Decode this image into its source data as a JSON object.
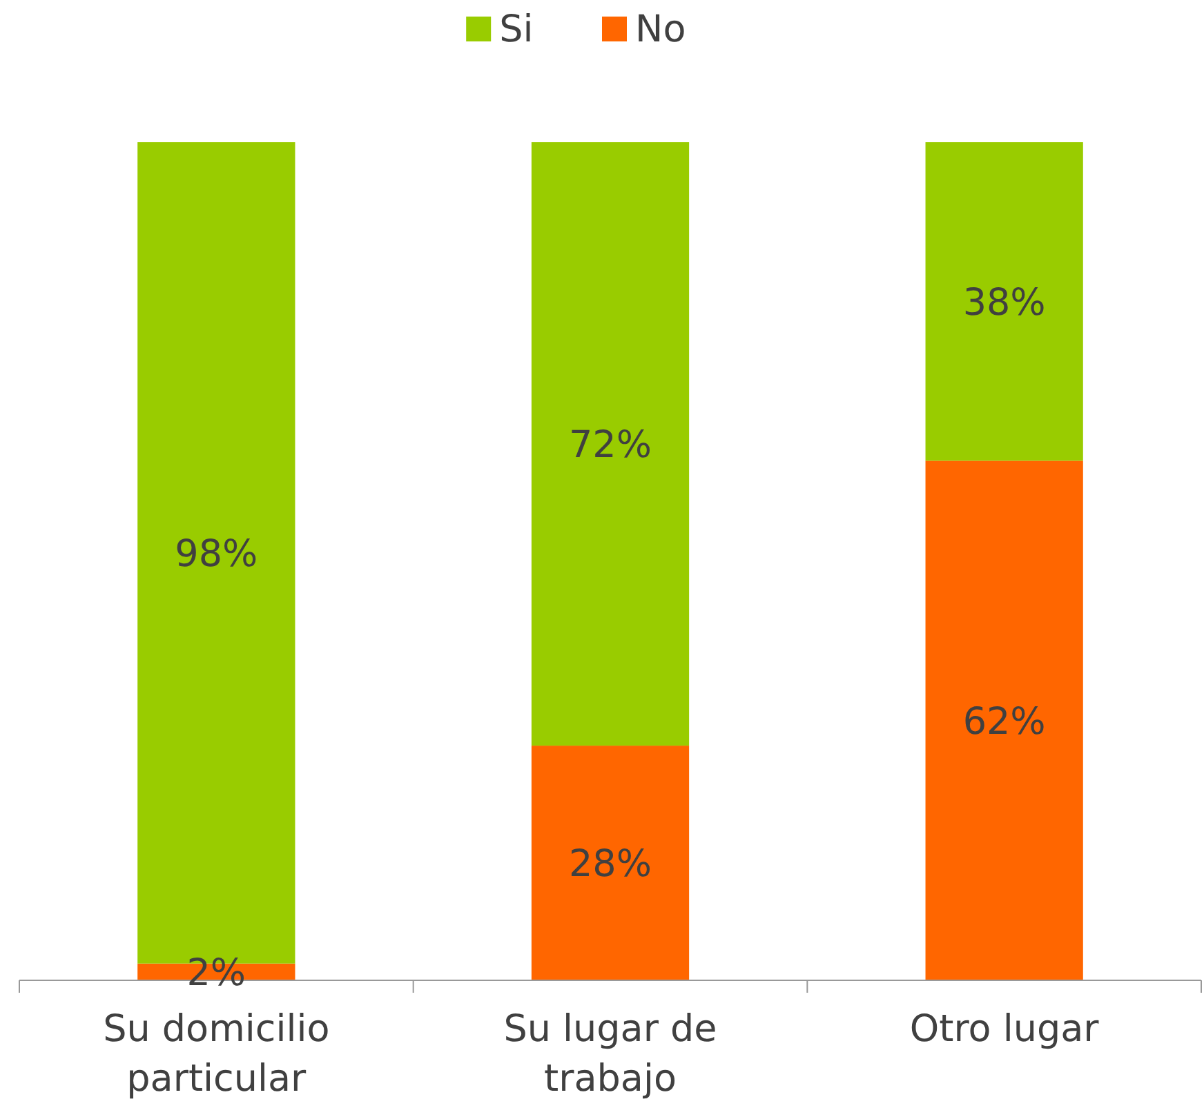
{
  "chart_data": {
    "type": "bar",
    "stacked": true,
    "categories": [
      "Su domicilio particular",
      "Su lugar de trabajo",
      "Otro lugar"
    ],
    "series": [
      {
        "name": "No",
        "color": "#ff6600",
        "values": [
          2,
          28,
          62
        ],
        "value_labels": [
          "2%",
          "28%",
          "62%"
        ]
      },
      {
        "name": "Si",
        "color": "#99cc00",
        "values": [
          98,
          72,
          38
        ],
        "value_labels": [
          "98%",
          "72%",
          "38%"
        ]
      }
    ],
    "legend": "top"
  }
}
